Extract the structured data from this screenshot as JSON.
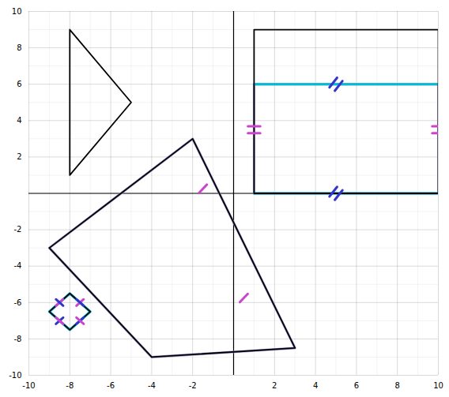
{
  "chart_data": {
    "type": "line",
    "xlim": [
      -10,
      10
    ],
    "ylim": [
      -10,
      10
    ],
    "xticks": [
      -10,
      -8,
      -6,
      -4,
      -2,
      2,
      4,
      6,
      8,
      10
    ],
    "yticks": [
      -10,
      -8,
      -6,
      -4,
      -2,
      2,
      4,
      6,
      8,
      10
    ],
    "grid": true,
    "series": [
      {
        "color": "#a090cc",
        "values": [
          [
            1,
            6
          ],
          [
            10,
            6
          ],
          [
            10,
            0
          ],
          [
            1,
            0
          ],
          [
            1,
            6
          ]
        ]
      },
      {
        "color": "#a090cc",
        "values": [
          [
            -9,
            -3
          ],
          [
            -2,
            3
          ],
          [
            3,
            -8.5
          ],
          [
            -4,
            -9
          ],
          [
            -9,
            -3
          ]
        ]
      },
      {
        "color": "#a090cc",
        "values": [
          [
            -9,
            -6.5
          ],
          [
            -8,
            -5.5
          ],
          [
            -7,
            -6.5
          ],
          [
            -8,
            -7.5
          ],
          [
            -9,
            -6.5
          ]
        ]
      },
      {
        "color": "#00bcd4",
        "values": [
          [
            1,
            6
          ],
          [
            10,
            6
          ]
        ]
      },
      {
        "color": "#00bcd4",
        "values": [
          [
            1,
            0
          ],
          [
            10,
            0
          ]
        ]
      },
      {
        "color": "#00bcd4",
        "values": [
          [
            -9,
            -6.5
          ],
          [
            -8,
            -5.5
          ],
          [
            -7,
            -6.5
          ],
          [
            -8,
            -7.5
          ],
          [
            -9,
            -6.5
          ]
        ]
      },
      {
        "color": "#000000",
        "values": [
          [
            -8,
            9
          ],
          [
            -8,
            1
          ],
          [
            -5,
            5
          ],
          [
            -8,
            9
          ]
        ]
      },
      {
        "color": "#000000",
        "values": [
          [
            1,
            9
          ],
          [
            10,
            9
          ],
          [
            10,
            0
          ],
          [
            1,
            0
          ],
          [
            1,
            9
          ]
        ]
      },
      {
        "color": "#000000",
        "values": [
          [
            -9,
            -3
          ],
          [
            -2,
            3
          ],
          [
            3,
            -8.5
          ],
          [
            -4,
            -9
          ],
          [
            -9,
            -3
          ]
        ]
      },
      {
        "color": "#000000",
        "values": [
          [
            -9,
            -6.5
          ],
          [
            -8,
            -5.5
          ],
          [
            -7,
            -6.5
          ],
          [
            -8,
            -7.5
          ],
          [
            -9,
            -6.5
          ]
        ]
      },
      {
        "color": "#3535cc",
        "values": [
          [
            4.944652,
            5.642004
          ],
          [
            5.317476,
            6.174452
          ]
        ]
      },
      {
        "color": "#3535cc",
        "values": [
          [
            4.682524,
            5.825548
          ],
          [
            5.055348,
            6.357996
          ]
        ]
      },
      {
        "color": "#3535cc",
        "values": [
          [
            4.944652,
            -0.357996
          ],
          [
            5.317476,
            0.174452
          ]
        ]
      },
      {
        "color": "#3535cc",
        "values": [
          [
            4.682524,
            -0.174452
          ],
          [
            5.055348,
            0.357996
          ]
        ]
      },
      {
        "color": "#cc44cc",
        "values": [
          [
            0.7,
            3.31
          ],
          [
            1.3,
            3.31
          ]
        ]
      },
      {
        "color": "#cc44cc",
        "values": [
          [
            0.7,
            3.69
          ],
          [
            1.3,
            3.69
          ]
        ]
      },
      {
        "color": "#cc44cc",
        "values": [
          [
            9.7,
            3.31
          ],
          [
            10.3,
            3.31
          ]
        ]
      },
      {
        "color": "#cc44cc",
        "values": [
          [
            9.7,
            3.69
          ],
          [
            10.3,
            3.69
          ]
        ]
      },
      {
        "color": "#cc44cc",
        "values": [
          [
            -1.692836,
            0.020187
          ],
          [
            -1.307164,
            0.479813
          ]
        ]
      },
      {
        "color": "#cc44cc",
        "values": [
          [
            0.307164,
            -5.979813
          ],
          [
            0.692836,
            -5.520187
          ]
        ]
      },
      {
        "color": "#cc44cc",
        "values": [
          [
            -8.676777,
            -6.176777
          ],
          [
            -8.323223,
            -5.823223
          ]
        ]
      },
      {
        "color": "#3535cc",
        "values": [
          [
            -8.676777,
            -5.823223
          ],
          [
            -8.323223,
            -6.176777
          ]
        ]
      },
      {
        "color": "#cc44cc",
        "values": [
          [
            -7.676777,
            -6.176777
          ],
          [
            -7.323223,
            -5.823223
          ]
        ]
      },
      {
        "color": "#3535cc",
        "values": [
          [
            -7.676777,
            -5.823223
          ],
          [
            -7.323223,
            -6.176777
          ]
        ]
      },
      {
        "color": "#3535cc",
        "values": [
          [
            -8.676777,
            -7.176777
          ],
          [
            -8.323223,
            -6.823223
          ]
        ]
      },
      {
        "color": "#cc44cc",
        "values": [
          [
            -8.676777,
            -6.823223
          ],
          [
            -8.323223,
            -7.176777
          ]
        ]
      },
      {
        "color": "#3535cc",
        "values": [
          [
            -7.676777,
            -7.176777
          ],
          [
            -7.323223,
            -6.823223
          ]
        ]
      },
      {
        "color": "#cc44cc",
        "values": [
          [
            -7.676777,
            -6.823223
          ],
          [
            -7.323223,
            -7.176777
          ]
        ]
      }
    ]
  }
}
